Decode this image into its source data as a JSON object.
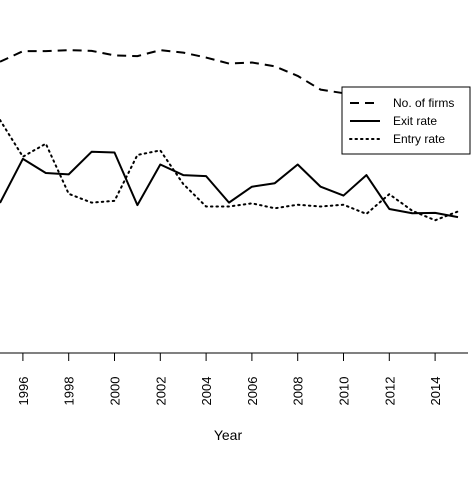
{
  "chart_data": {
    "type": "line",
    "xlabel": "Year",
    "x": [
      1995,
      1996,
      1997,
      1998,
      1999,
      2000,
      2001,
      2002,
      2003,
      2004,
      2005,
      2006,
      2007,
      2008,
      2009,
      2010,
      2011,
      2012,
      2013,
      2014,
      2015
    ],
    "x_ticks": [
      1996,
      1998,
      2000,
      2002,
      2004,
      2006,
      2008,
      2010,
      2012,
      2014
    ],
    "xlim": [
      1995,
      2015.5
    ],
    "ylim": [
      0,
      100
    ],
    "grid": false,
    "legend_position": "top-right",
    "series": [
      {
        "name": "No. of firms",
        "style": "dashed",
        "values": [
          82.5,
          85.5,
          85.5,
          85.8,
          85.6,
          84.3,
          84.1,
          85.8,
          85.1,
          83.7,
          82.0,
          82.3,
          81.2,
          78.5,
          74.6,
          73.6,
          73.2,
          72.2,
          71.3,
          70.4,
          69.5
        ]
      },
      {
        "name": "Exit rate",
        "style": "solid",
        "values": [
          42.5,
          55.0,
          51.0,
          50.6,
          57.0,
          56.8,
          41.9,
          53.4,
          50.4,
          50.1,
          42.6,
          47.1,
          48.1,
          53.4,
          47.1,
          44.6,
          50.4,
          40.8,
          39.6,
          39.7,
          38.5
        ]
      },
      {
        "name": "Entry rate",
        "style": "dotted",
        "values": [
          66.0,
          55.6,
          59.3,
          45.1,
          42.6,
          43.1,
          56.1,
          57.4,
          47.9,
          41.5,
          41.5,
          42.4,
          41.0,
          42.0,
          41.5,
          42.0,
          39.4,
          45.0,
          40.3,
          37.6,
          40.1
        ]
      }
    ]
  }
}
